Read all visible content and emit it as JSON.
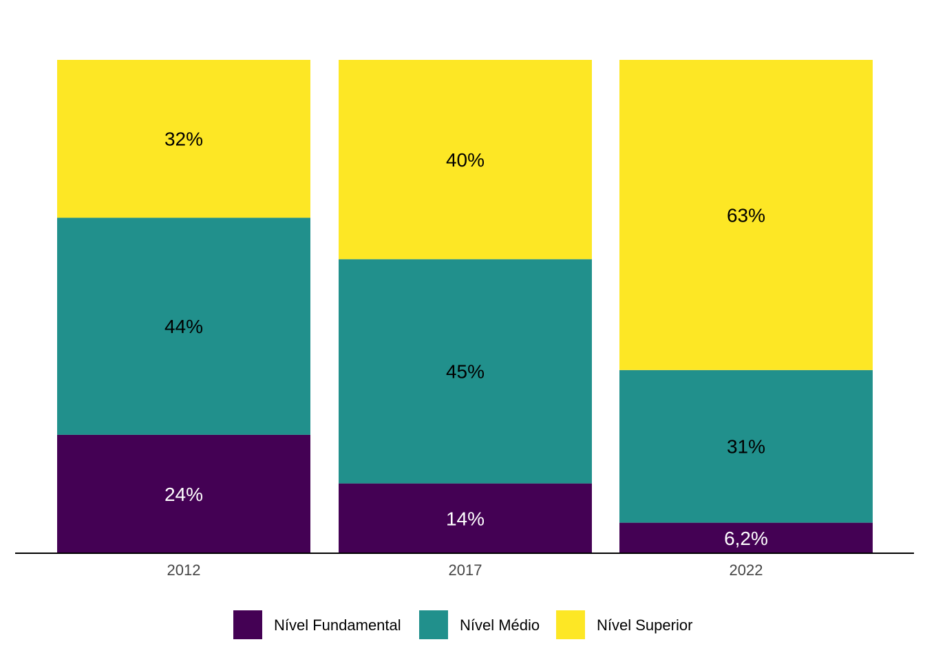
{
  "chart_data": {
    "type": "bar",
    "stacked": true,
    "normalized": true,
    "categories": [
      "2012",
      "2017",
      "2022"
    ],
    "series": [
      {
        "name": "Nível Fundamental",
        "color": "#440154",
        "label_color": "#ffffff",
        "values": [
          24,
          14,
          6.2
        ],
        "labels": [
          "24%",
          "14%",
          "6,2%"
        ]
      },
      {
        "name": "Nível Médio",
        "color": "#21908C",
        "label_color": "#000000",
        "values": [
          44,
          45,
          31
        ],
        "labels": [
          "44%",
          "45%",
          "31%"
        ]
      },
      {
        "name": "Nível Superior",
        "color": "#FDE725",
        "label_color": "#000000",
        "values": [
          32,
          40,
          63
        ],
        "labels": [
          "32%",
          "40%",
          "63%"
        ]
      }
    ],
    "ylim": [
      0,
      100
    ],
    "grid": false,
    "legend_position": "bottom",
    "title": "",
    "xlabel": "",
    "ylabel": ""
  }
}
